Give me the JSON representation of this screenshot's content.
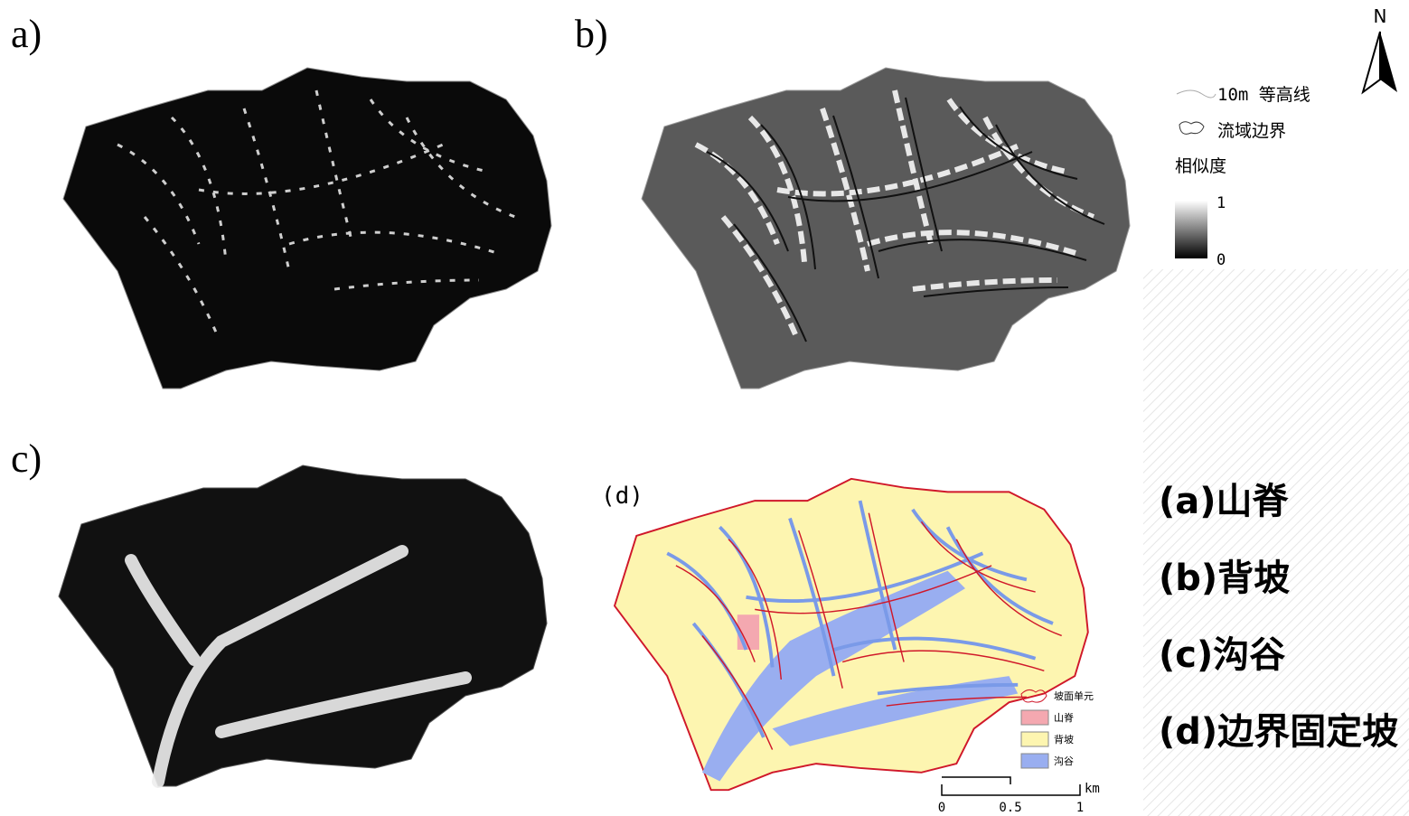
{
  "panels": [
    {
      "label": "a)"
    },
    {
      "label": "b)"
    },
    {
      "label": "c)"
    },
    {
      "label": "(d)"
    }
  ],
  "north": "N",
  "legend": {
    "contour": "10m 等高线",
    "boundary": "流域边界",
    "similarity": "相似度",
    "max": "1",
    "min": "0"
  },
  "panel_d_legend": {
    "unit": "坡面单元",
    "items": [
      "山脊",
      "背坡",
      "沟谷"
    ],
    "scale_unit": "km",
    "scale_ticks": [
      "0",
      "0.5",
      "1"
    ]
  },
  "captions": [
    "(a)山脊",
    "(b)背坡",
    "(c)沟谷",
    "(d)边界固定坡"
  ]
}
